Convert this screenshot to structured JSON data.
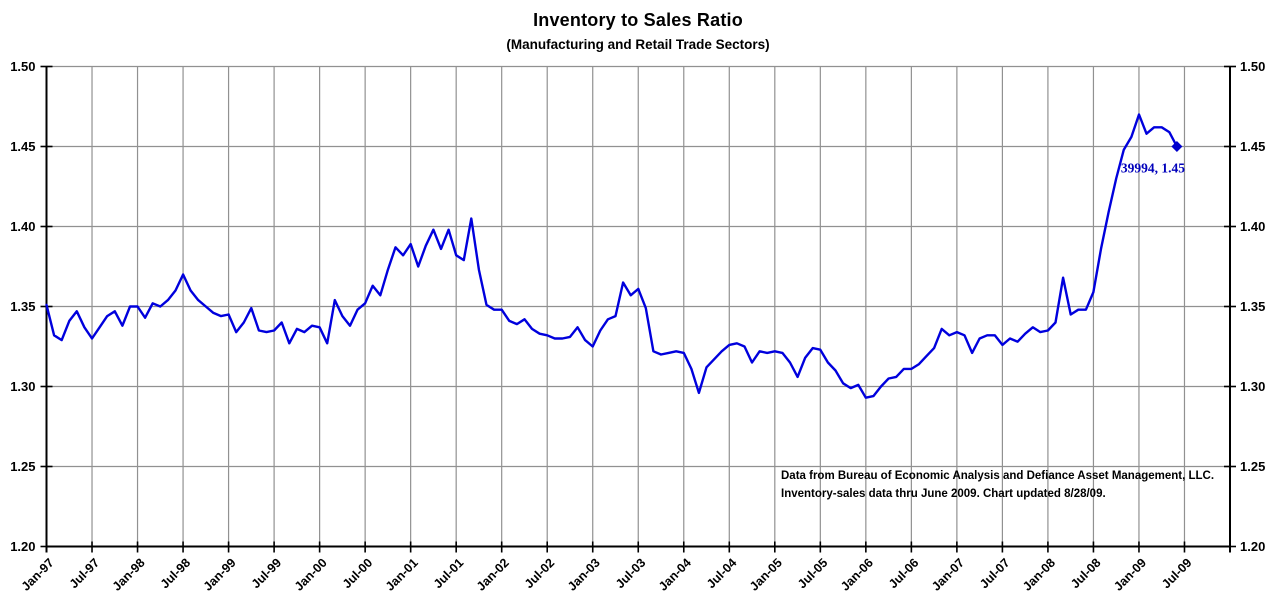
{
  "header": {
    "title": "Inventory to Sales Ratio",
    "subtitle": "(Manufacturing and Retail Trade Sectors)"
  },
  "note": {
    "line1": "Data from Bureau of Economic Analysis and Defiance Asset Management, LLC.",
    "line2": "Inventory-sales data thru June 2009. Chart updated 8/28/09."
  },
  "chart_data": {
    "type": "line",
    "title": "Inventory to Sales Ratio",
    "subtitle": "(Manufacturing and Retail Trade Sectors)",
    "x_start": "Jan-1997",
    "x_end": "Jun-2009",
    "frequency": "monthly",
    "x_tick_labels": [
      "Jan-97",
      "Jul-97",
      "Jan-98",
      "Jul-98",
      "Jan-99",
      "Jul-99",
      "Jan-00",
      "Jul-00",
      "Jan-01",
      "Jul-01",
      "Jan-02",
      "Jul-02",
      "Jan-03",
      "Jul-03",
      "Jan-04",
      "Jul-04",
      "Jan-05",
      "Jul-05",
      "Jan-06",
      "Jul-06",
      "Jan-07",
      "Jul-07",
      "Jan-08",
      "Jul-08",
      "Jan-09",
      "Jul-09"
    ],
    "y_ticks": [
      1.2,
      1.25,
      1.3,
      1.35,
      1.4,
      1.45,
      1.5
    ],
    "ylim": [
      1.2,
      1.5
    ],
    "grid": true,
    "legend": false,
    "series": [
      {
        "name": "Inventory to Sales Ratio",
        "values": [
          1.351,
          1.332,
          1.329,
          1.341,
          1.347,
          1.337,
          1.33,
          1.337,
          1.344,
          1.347,
          1.338,
          1.35,
          1.35,
          1.343,
          1.352,
          1.35,
          1.354,
          1.36,
          1.37,
          1.36,
          1.354,
          1.35,
          1.346,
          1.344,
          1.345,
          1.334,
          1.34,
          1.349,
          1.335,
          1.334,
          1.335,
          1.34,
          1.327,
          1.336,
          1.334,
          1.338,
          1.337,
          1.327,
          1.354,
          1.344,
          1.338,
          1.348,
          1.352,
          1.363,
          1.357,
          1.373,
          1.387,
          1.382,
          1.389,
          1.375,
          1.388,
          1.398,
          1.386,
          1.398,
          1.382,
          1.379,
          1.405,
          1.373,
          1.351,
          1.348,
          1.348,
          1.341,
          1.339,
          1.342,
          1.336,
          1.333,
          1.332,
          1.33,
          1.33,
          1.331,
          1.337,
          1.329,
          1.325,
          1.335,
          1.342,
          1.344,
          1.365,
          1.357,
          1.361,
          1.349,
          1.322,
          1.32,
          1.321,
          1.322,
          1.321,
          1.311,
          1.296,
          1.312,
          1.317,
          1.322,
          1.326,
          1.327,
          1.325,
          1.315,
          1.322,
          1.321,
          1.322,
          1.321,
          1.315,
          1.306,
          1.318,
          1.324,
          1.323,
          1.315,
          1.31,
          1.302,
          1.299,
          1.301,
          1.293,
          1.294,
          1.3,
          1.305,
          1.306,
          1.311,
          1.311,
          1.314,
          1.319,
          1.324,
          1.336,
          1.332,
          1.334,
          1.332,
          1.321,
          1.33,
          1.332,
          1.332,
          1.326,
          1.33,
          1.328,
          1.333,
          1.337,
          1.334,
          1.335,
          1.34,
          1.368,
          1.345,
          1.348,
          1.348,
          1.359,
          1.386,
          1.409,
          1.43,
          1.448,
          1.456,
          1.47,
          1.458,
          1.462,
          1.462,
          1.459,
          1.45
        ]
      }
    ],
    "end_point_label": "39994, 1.45",
    "end_point_value": 1.45,
    "colors": {
      "line": "#0000dd",
      "marker": "#0000cc",
      "annotation": "#0000bb",
      "grid": "#919191",
      "axis": "#000000",
      "text": "#000000",
      "background": "#ffffff"
    }
  }
}
